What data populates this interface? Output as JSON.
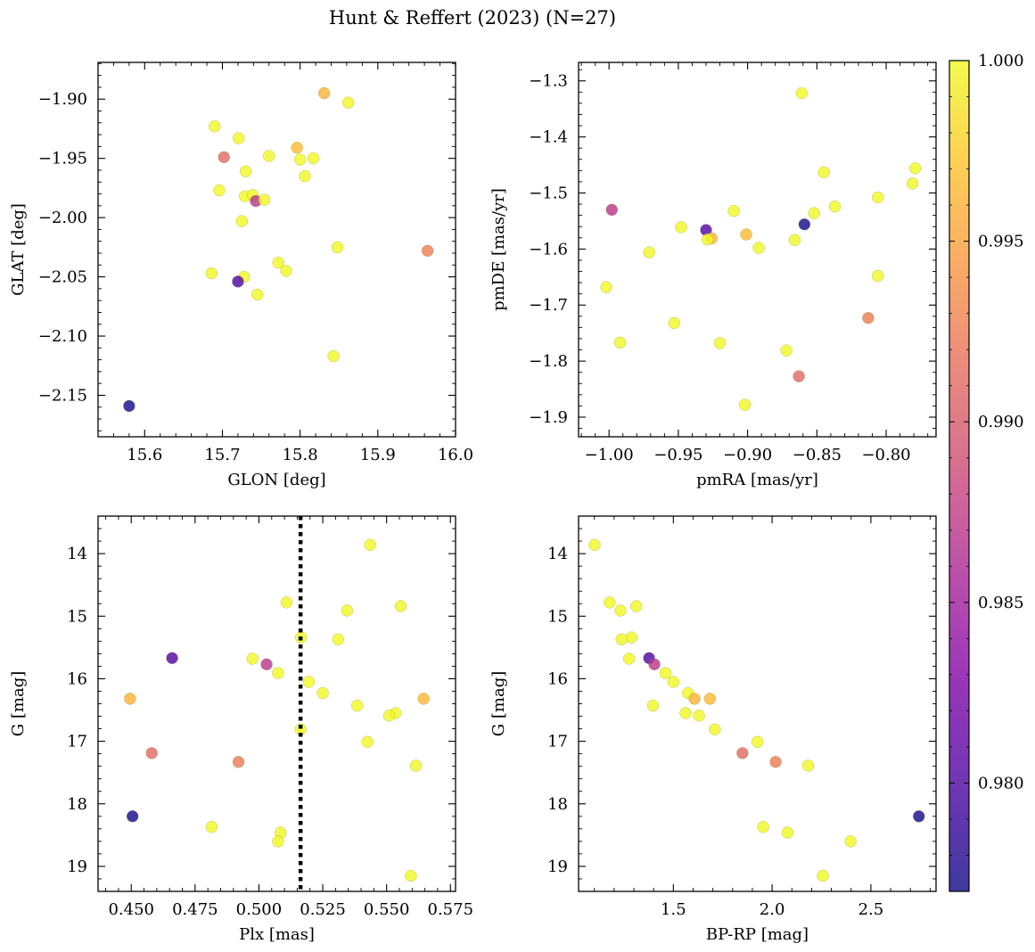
{
  "figure": {
    "title": "Hunt & Reffert (2023) (N=27)"
  },
  "colorbar": {
    "cmap": "plasma",
    "vmin": 0.977,
    "vmax": 1.0,
    "ticks": [
      0.98,
      0.985,
      0.99,
      0.995,
      1.0
    ],
    "tick_labels": [
      "0.980",
      "0.985",
      "0.990",
      "0.995",
      "1.000"
    ]
  },
  "chart_data": [
    {
      "type": "scatter",
      "xlabel": "GLON [deg]",
      "ylabel": "GLAT [deg]",
      "xlim": [
        15.54,
        16.0
      ],
      "ylim": [
        -2.185,
        -1.869
      ],
      "xticks": [
        15.6,
        15.7,
        15.8,
        15.9,
        16.0
      ],
      "xtick_labels": [
        "15.6",
        "15.7",
        "15.8",
        "15.9",
        "16.0"
      ],
      "yticks": [
        -1.9,
        -1.95,
        -2.0,
        -2.05,
        -2.1,
        -2.15
      ],
      "ytick_labels": [
        "−1.90",
        "−1.95",
        "−2.00",
        "−2.05",
        "−2.10",
        "−2.15"
      ],
      "points": [
        {
          "x": 15.58,
          "y": -2.159,
          "c": 0.9772
        },
        {
          "x": 15.831,
          "y": -1.895,
          "c": 0.996
        },
        {
          "x": 15.862,
          "y": -1.903,
          "c": 1.0
        },
        {
          "x": 15.69,
          "y": -1.923,
          "c": 1.0
        },
        {
          "x": 15.721,
          "y": -1.933,
          "c": 1.0
        },
        {
          "x": 15.702,
          "y": -1.949,
          "c": 0.991
        },
        {
          "x": 15.76,
          "y": -1.948,
          "c": 1.0
        },
        {
          "x": 15.796,
          "y": -1.941,
          "c": 0.9965
        },
        {
          "x": 15.8,
          "y": -1.951,
          "c": 1.0
        },
        {
          "x": 15.817,
          "y": -1.95,
          "c": 1.0
        },
        {
          "x": 15.73,
          "y": -1.961,
          "c": 1.0
        },
        {
          "x": 15.806,
          "y": -1.965,
          "c": 1.0
        },
        {
          "x": 15.696,
          "y": -1.977,
          "c": 1.0
        },
        {
          "x": 15.729,
          "y": -1.982,
          "c": 1.0
        },
        {
          "x": 15.739,
          "y": -1.981,
          "c": 1.0
        },
        {
          "x": 15.743,
          "y": -1.986,
          "c": 0.987
        },
        {
          "x": 15.754,
          "y": -1.985,
          "c": 1.0
        },
        {
          "x": 15.725,
          "y": -2.003,
          "c": 1.0
        },
        {
          "x": 15.848,
          "y": -2.025,
          "c": 1.0
        },
        {
          "x": 15.964,
          "y": -2.028,
          "c": 0.9925
        },
        {
          "x": 15.772,
          "y": -2.038,
          "c": 1.0
        },
        {
          "x": 15.686,
          "y": -2.047,
          "c": 1.0
        },
        {
          "x": 15.782,
          "y": -2.045,
          "c": 1.0
        },
        {
          "x": 15.728,
          "y": -2.05,
          "c": 1.0
        },
        {
          "x": 15.72,
          "y": -2.054,
          "c": 0.98
        },
        {
          "x": 15.745,
          "y": -2.065,
          "c": 1.0
        },
        {
          "x": 15.843,
          "y": -2.117,
          "c": 1.0
        }
      ]
    },
    {
      "type": "scatter",
      "xlabel": "pmRA [mas/yr]",
      "ylabel": "pmDE [mas/yr]",
      "xlim": [
        -1.022,
        -0.764
      ],
      "ylim": [
        -1.935,
        -1.267
      ],
      "xticks": [
        -1.0,
        -0.95,
        -0.9,
        -0.85,
        -0.8
      ],
      "xtick_labels": [
        "−1.00",
        "−0.95",
        "−0.90",
        "−0.85",
        "−0.80"
      ],
      "yticks": [
        -1.3,
        -1.4,
        -1.5,
        -1.6,
        -1.7,
        -1.8,
        -1.9
      ],
      "ytick_labels": [
        "−1.3",
        "−1.4",
        "−1.5",
        "−1.6",
        "−1.7",
        "−1.8",
        "−1.9"
      ],
      "points": [
        {
          "x": -0.861,
          "y": -1.322,
          "c": 1.0
        },
        {
          "x": -0.845,
          "y": -1.463,
          "c": 1.0
        },
        {
          "x": -0.779,
          "y": -1.456,
          "c": 1.0
        },
        {
          "x": -0.781,
          "y": -1.483,
          "c": 1.0
        },
        {
          "x": -0.806,
          "y": -1.508,
          "c": 1.0
        },
        {
          "x": -0.837,
          "y": -1.524,
          "c": 1.0
        },
        {
          "x": -0.998,
          "y": -1.53,
          "c": 0.987
        },
        {
          "x": -0.91,
          "y": -1.532,
          "c": 1.0
        },
        {
          "x": -0.852,
          "y": -1.536,
          "c": 1.0
        },
        {
          "x": -0.859,
          "y": -1.556,
          "c": 0.9772
        },
        {
          "x": -0.948,
          "y": -1.561,
          "c": 1.0
        },
        {
          "x": -0.93,
          "y": -1.566,
          "c": 0.98
        },
        {
          "x": -0.901,
          "y": -1.574,
          "c": 0.9965
        },
        {
          "x": -0.926,
          "y": -1.581,
          "c": 0.996
        },
        {
          "x": -0.929,
          "y": -1.583,
          "c": 1.0
        },
        {
          "x": -0.866,
          "y": -1.584,
          "c": 1.0
        },
        {
          "x": -0.892,
          "y": -1.598,
          "c": 1.0
        },
        {
          "x": -0.971,
          "y": -1.606,
          "c": 1.0
        },
        {
          "x": -0.806,
          "y": -1.648,
          "c": 1.0
        },
        {
          "x": -1.002,
          "y": -1.668,
          "c": 1.0
        },
        {
          "x": -0.813,
          "y": -1.723,
          "c": 0.9925
        },
        {
          "x": -0.953,
          "y": -1.732,
          "c": 1.0
        },
        {
          "x": -0.992,
          "y": -1.767,
          "c": 1.0
        },
        {
          "x": -0.92,
          "y": -1.768,
          "c": 1.0
        },
        {
          "x": -0.872,
          "y": -1.781,
          "c": 1.0
        },
        {
          "x": -0.863,
          "y": -1.827,
          "c": 0.991
        },
        {
          "x": -0.902,
          "y": -1.878,
          "c": 1.0
        }
      ]
    },
    {
      "type": "scatter",
      "xlabel": "Plx [mas]",
      "ylabel": "G [mag]",
      "xlim": [
        0.437,
        0.577
      ],
      "ylim": [
        19.4,
        13.4
      ],
      "inverted_y": true,
      "vline": {
        "x": 0.5163,
        "style": "dotted",
        "color": "#000000"
      },
      "xticks": [
        0.45,
        0.475,
        0.5,
        0.525,
        0.55,
        0.575
      ],
      "xtick_labels": [
        "0.450",
        "0.475",
        "0.500",
        "0.525",
        "0.550",
        "0.575"
      ],
      "yticks": [
        14,
        15,
        16,
        17,
        18,
        19
      ],
      "ytick_labels": [
        "14",
        "15",
        "16",
        "17",
        "18",
        "19"
      ],
      "points": [
        {
          "x": 0.5435,
          "y": 13.86,
          "c": 1.0
        },
        {
          "x": 0.5108,
          "y": 14.78,
          "c": 1.0
        },
        {
          "x": 0.5555,
          "y": 14.84,
          "c": 1.0
        },
        {
          "x": 0.5345,
          "y": 14.91,
          "c": 1.0
        },
        {
          "x": 0.5165,
          "y": 15.34,
          "c": 1.0
        },
        {
          "x": 0.531,
          "y": 15.37,
          "c": 1.0
        },
        {
          "x": 0.466,
          "y": 15.67,
          "c": 0.98
        },
        {
          "x": 0.4975,
          "y": 15.68,
          "c": 1.0
        },
        {
          "x": 0.503,
          "y": 15.77,
          "c": 0.987
        },
        {
          "x": 0.5075,
          "y": 15.91,
          "c": 1.0
        },
        {
          "x": 0.5195,
          "y": 16.05,
          "c": 1.0
        },
        {
          "x": 0.525,
          "y": 16.23,
          "c": 1.0
        },
        {
          "x": 0.4495,
          "y": 16.32,
          "c": 0.996
        },
        {
          "x": 0.5645,
          "y": 16.32,
          "c": 0.9965
        },
        {
          "x": 0.5385,
          "y": 16.43,
          "c": 1.0
        },
        {
          "x": 0.5535,
          "y": 16.55,
          "c": 1.0
        },
        {
          "x": 0.551,
          "y": 16.59,
          "c": 1.0
        },
        {
          "x": 0.5163,
          "y": 16.81,
          "c": 1.0
        },
        {
          "x": 0.5425,
          "y": 17.01,
          "c": 1.0
        },
        {
          "x": 0.458,
          "y": 17.19,
          "c": 0.991
        },
        {
          "x": 0.492,
          "y": 17.33,
          "c": 0.9925
        },
        {
          "x": 0.5615,
          "y": 17.39,
          "c": 1.0
        },
        {
          "x": 0.4505,
          "y": 18.2,
          "c": 0.9772
        },
        {
          "x": 0.4815,
          "y": 18.37,
          "c": 1.0
        },
        {
          "x": 0.5085,
          "y": 18.46,
          "c": 1.0
        },
        {
          "x": 0.5075,
          "y": 18.6,
          "c": 1.0
        },
        {
          "x": 0.5595,
          "y": 19.15,
          "c": 1.0
        }
      ]
    },
    {
      "type": "scatter",
      "xlabel": "BP-RP [mag]",
      "ylabel": "G [mag]",
      "xlim": [
        1.02,
        2.83
      ],
      "ylim": [
        19.4,
        13.4
      ],
      "inverted_y": true,
      "xticks": [
        1.5,
        2.0,
        2.5
      ],
      "xtick_labels": [
        "1.5",
        "2.0",
        "2.5"
      ],
      "yticks": [
        14,
        15,
        16,
        17,
        18,
        19
      ],
      "ytick_labels": [
        "14",
        "15",
        "16",
        "17",
        "18",
        "19"
      ],
      "points": [
        {
          "x": 1.101,
          "y": 13.86,
          "c": 1.0
        },
        {
          "x": 1.177,
          "y": 14.78,
          "c": 1.0
        },
        {
          "x": 1.312,
          "y": 14.84,
          "c": 1.0
        },
        {
          "x": 1.232,
          "y": 14.91,
          "c": 1.0
        },
        {
          "x": 1.288,
          "y": 15.34,
          "c": 1.0
        },
        {
          "x": 1.238,
          "y": 15.37,
          "c": 1.0
        },
        {
          "x": 1.377,
          "y": 15.67,
          "c": 0.98
        },
        {
          "x": 1.276,
          "y": 15.68,
          "c": 1.0
        },
        {
          "x": 1.404,
          "y": 15.77,
          "c": 0.987
        },
        {
          "x": 1.46,
          "y": 15.91,
          "c": 1.0
        },
        {
          "x": 1.5,
          "y": 16.05,
          "c": 1.0
        },
        {
          "x": 1.574,
          "y": 16.23,
          "c": 1.0
        },
        {
          "x": 1.607,
          "y": 16.32,
          "c": 0.996
        },
        {
          "x": 1.685,
          "y": 16.32,
          "c": 0.9965
        },
        {
          "x": 1.397,
          "y": 16.43,
          "c": 1.0
        },
        {
          "x": 1.562,
          "y": 16.55,
          "c": 1.0
        },
        {
          "x": 1.63,
          "y": 16.59,
          "c": 1.0
        },
        {
          "x": 1.71,
          "y": 16.81,
          "c": 1.0
        },
        {
          "x": 1.926,
          "y": 17.01,
          "c": 1.0
        },
        {
          "x": 1.85,
          "y": 17.19,
          "c": 0.991
        },
        {
          "x": 2.018,
          "y": 17.33,
          "c": 0.9925
        },
        {
          "x": 2.182,
          "y": 17.39,
          "c": 1.0
        },
        {
          "x": 2.743,
          "y": 18.2,
          "c": 0.9772
        },
        {
          "x": 1.955,
          "y": 18.37,
          "c": 1.0
        },
        {
          "x": 2.078,
          "y": 18.46,
          "c": 1.0
        },
        {
          "x": 2.397,
          "y": 18.6,
          "c": 1.0
        },
        {
          "x": 2.257,
          "y": 19.15,
          "c": 1.0
        }
      ]
    }
  ]
}
